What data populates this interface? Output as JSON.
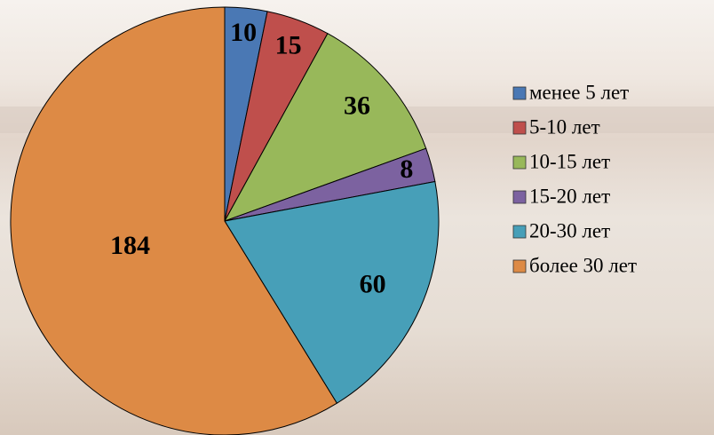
{
  "chart_data": {
    "type": "pie",
    "categories": [
      "менее 5 лет",
      "5-10 лет",
      "10-15 лет",
      "15-20 лет",
      "20-30 лет",
      "более 30 лет"
    ],
    "values": [
      10,
      15,
      36,
      8,
      60,
      184
    ],
    "colors": [
      "#4a78b4",
      "#bf4f4c",
      "#98b85a",
      "#7c62a0",
      "#479fb8",
      "#dd8a45"
    ],
    "legend": "right"
  }
}
